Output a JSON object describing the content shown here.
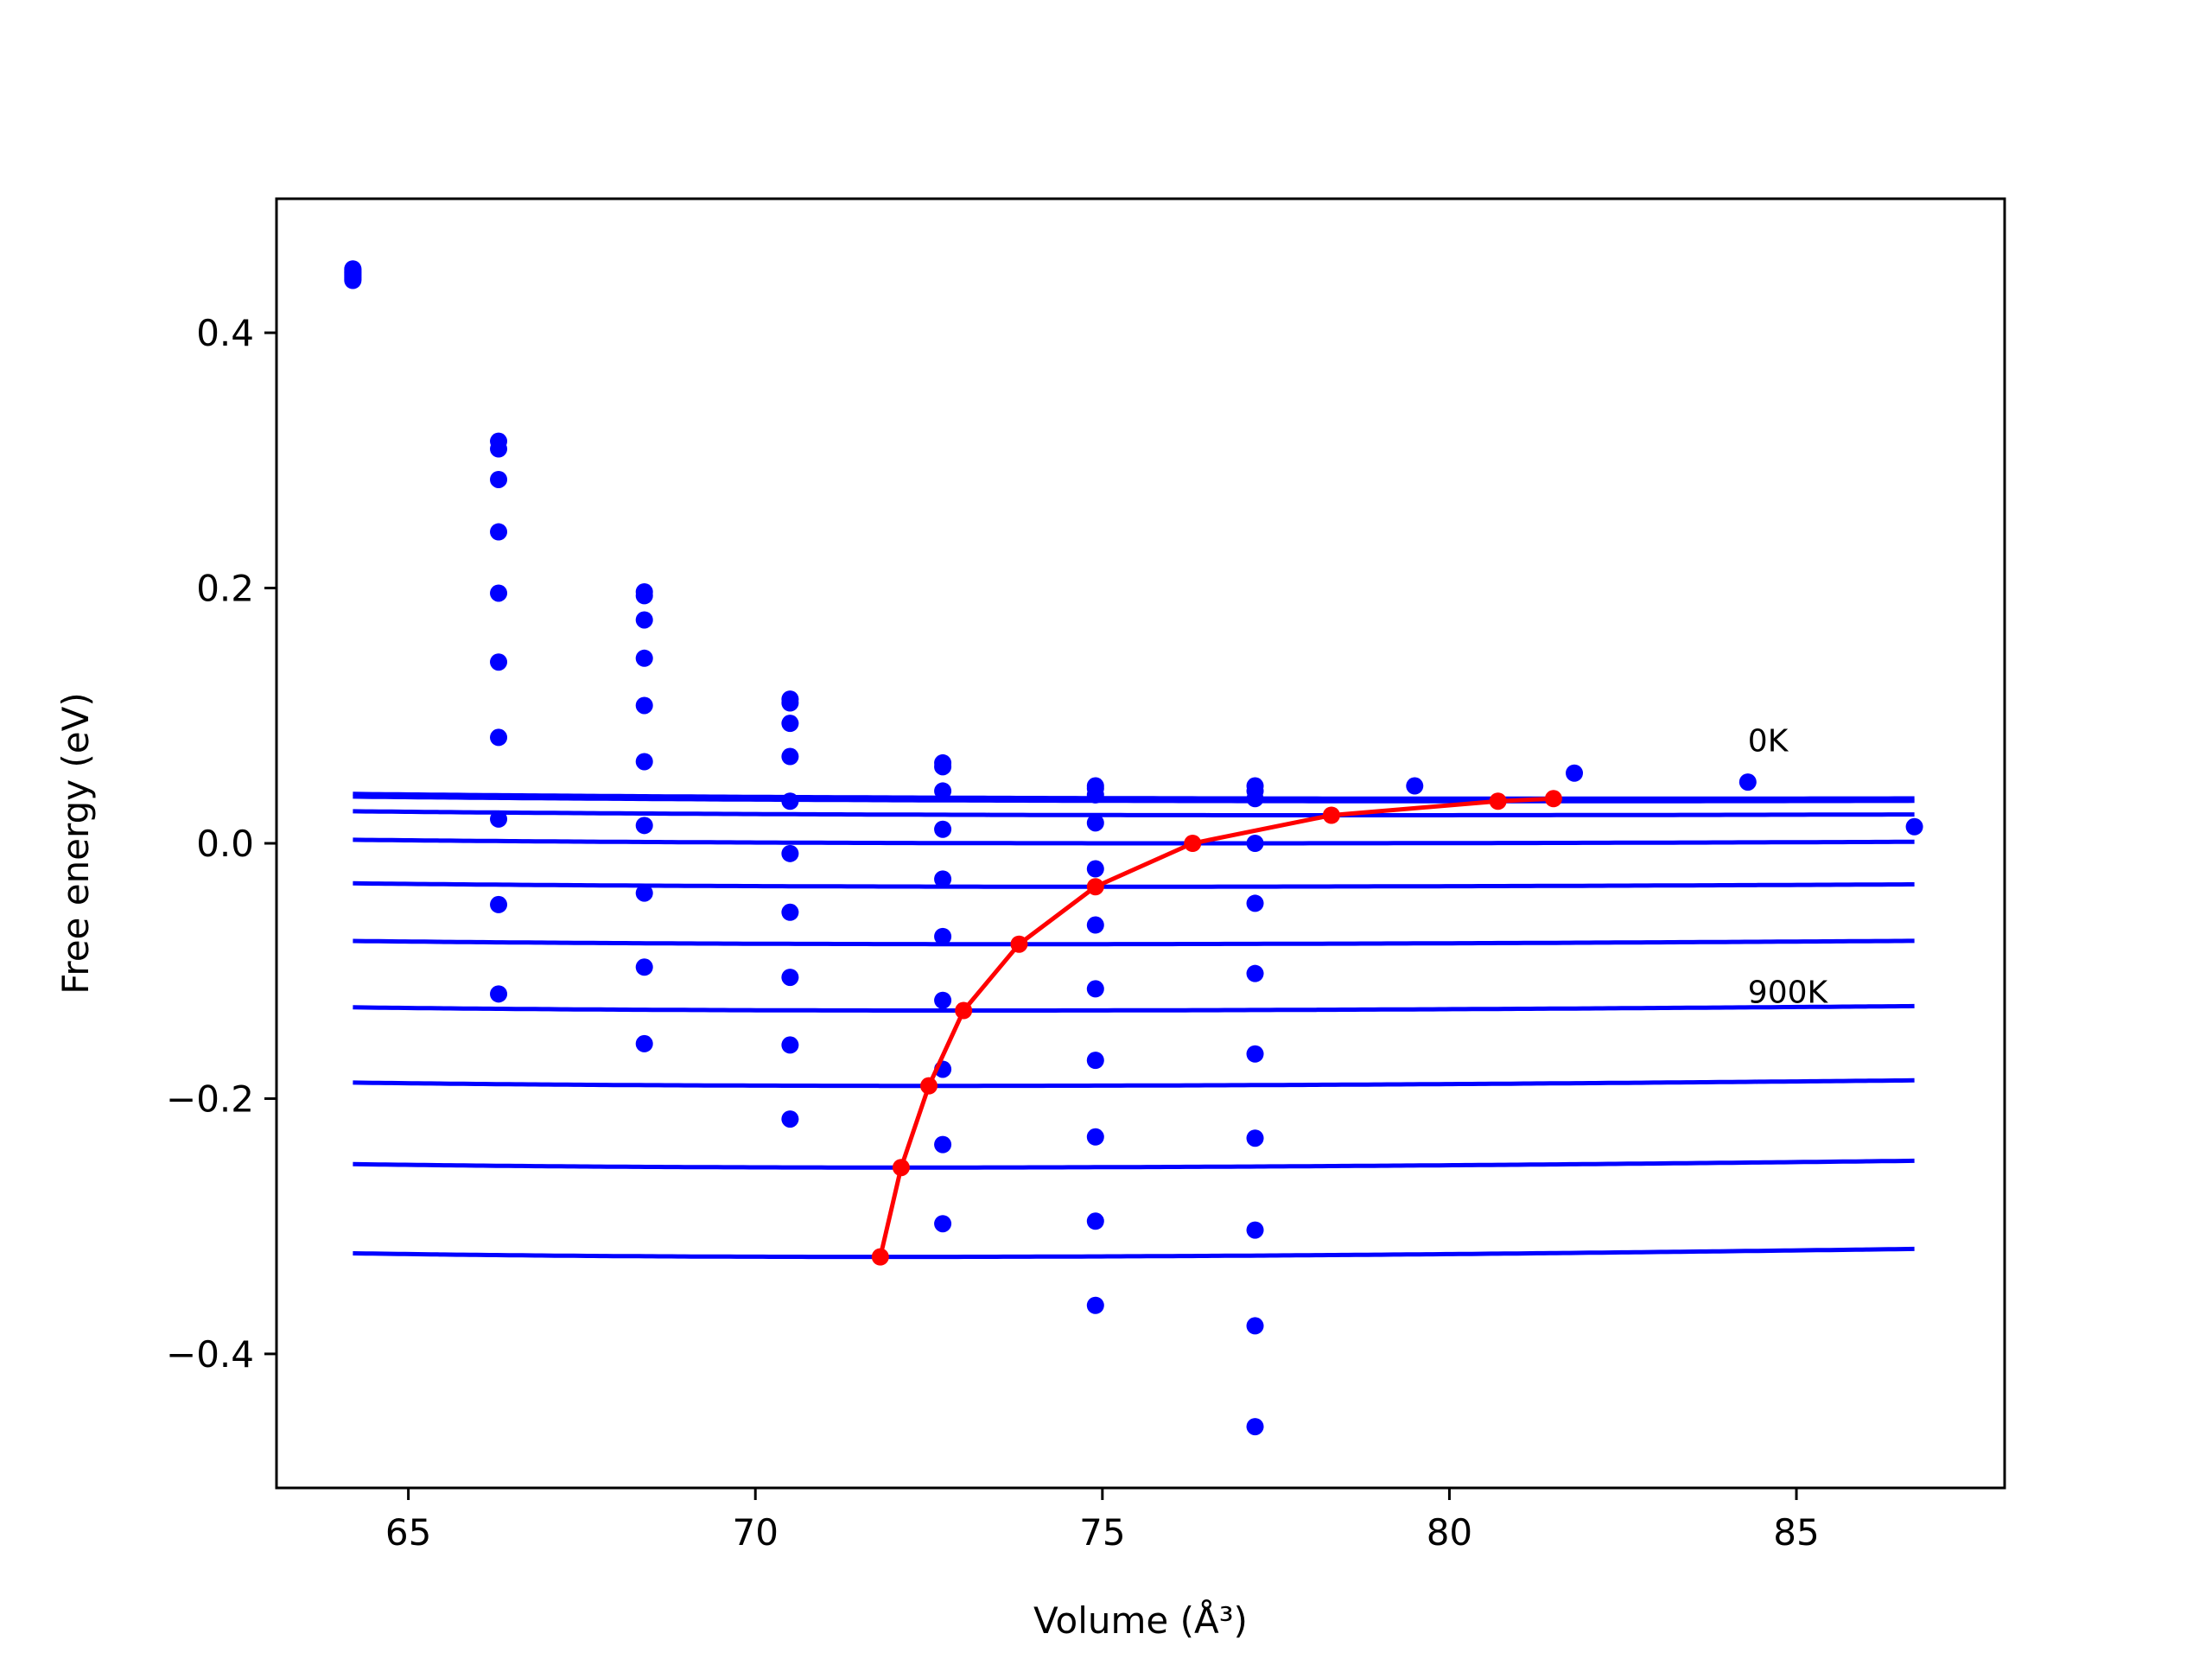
{
  "chart_data": {
    "type": "line",
    "xlabel": "Volume (Å³)",
    "ylabel": "Free energy (eV)",
    "xlim": [
      63.1,
      88.0
    ],
    "ylim": [
      -0.505,
      0.505
    ],
    "xticks": [
      65,
      70,
      75,
      80,
      85
    ],
    "yticks": [
      -0.4,
      -0.2,
      0.0,
      0.2,
      0.4
    ],
    "ytick_labels": [
      "−0.4",
      "−0.2",
      "0.0",
      "0.2",
      "0.4"
    ],
    "grid": false,
    "annotations": [
      {
        "text": "0K",
        "x": 84.3,
        "y": 0.072
      },
      {
        "text": "900K",
        "x": 84.3,
        "y": -0.125
      }
    ],
    "colors": {
      "curves": "#0000ff",
      "points": "#0000ff",
      "minima": "#ff0000"
    },
    "series": [
      {
        "curve": {
          "v0": 81.5,
          "e0": 0.035,
          "b": 0.0013,
          "bp": 4.5
        },
        "points": [
          [
            64.2,
            0.45
          ],
          [
            66.3,
            0.315
          ],
          [
            68.4,
            0.197
          ],
          [
            70.5,
            0.113
          ],
          [
            72.7,
            0.063
          ],
          [
            74.9,
            0.045
          ],
          [
            77.2,
            0.045
          ],
          [
            79.5,
            0.045
          ],
          [
            81.8,
            0.055
          ],
          [
            84.3,
            0.048
          ],
          [
            86.7,
            0.013
          ]
        ]
      },
      {
        "curve": {
          "v0": 80.7,
          "e0": 0.033,
          "b": 0.0014,
          "bp": 4.5
        },
        "points": [
          [
            64.2,
            0.449
          ],
          [
            66.3,
            0.309
          ],
          [
            68.4,
            0.194
          ],
          [
            70.5,
            0.11
          ],
          [
            72.7,
            0.06
          ],
          [
            74.9,
            0.043
          ],
          [
            77.2,
            0.041
          ]
        ]
      },
      {
        "curve": {
          "v0": 78.3,
          "e0": 0.022,
          "b": 0.0017,
          "bp": 4.5
        },
        "points": [
          [
            64.2,
            0.448
          ],
          [
            66.3,
            0.285
          ],
          [
            68.4,
            0.175
          ],
          [
            70.5,
            0.094
          ],
          [
            72.7,
            0.041
          ],
          [
            74.9,
            0.038
          ],
          [
            77.2,
            0.035
          ]
        ]
      },
      {
        "curve": {
          "v0": 76.3,
          "e0": 0.0,
          "b": 0.0021,
          "bp": 4.5
        },
        "points": [
          [
            64.2,
            0.447
          ],
          [
            66.3,
            0.244
          ],
          [
            68.4,
            0.145
          ],
          [
            70.5,
            0.068
          ],
          [
            72.7,
            0.011
          ],
          [
            74.9,
            0.016
          ],
          [
            77.2,
            0.0
          ]
        ]
      },
      {
        "curve": {
          "v0": 74.9,
          "e0": -0.034,
          "b": 0.0026,
          "bp": 4.5
        },
        "points": [
          [
            64.2,
            0.446
          ],
          [
            66.3,
            0.196
          ],
          [
            68.4,
            0.108
          ],
          [
            70.5,
            0.033
          ],
          [
            72.7,
            -0.028
          ],
          [
            74.9,
            -0.02
          ],
          [
            77.2,
            -0.047
          ]
        ]
      },
      {
        "curve": {
          "v0": 73.8,
          "e0": -0.079,
          "b": 0.0031,
          "bp": 4.5
        },
        "points": [
          [
            64.2,
            0.445
          ],
          [
            66.3,
            0.142
          ],
          [
            68.4,
            0.064
          ],
          [
            70.5,
            -0.008
          ],
          [
            72.7,
            -0.073
          ],
          [
            74.9,
            -0.064
          ],
          [
            77.2,
            -0.102
          ]
        ]
      },
      {
        "curve": {
          "v0": 73.0,
          "e0": -0.131,
          "b": 0.0037,
          "bp": 4.5
        },
        "points": [
          [
            64.2,
            0.444
          ],
          [
            66.3,
            0.083
          ],
          [
            68.4,
            0.014
          ],
          [
            70.5,
            -0.054
          ],
          [
            72.7,
            -0.123
          ],
          [
            74.9,
            -0.114
          ],
          [
            77.2,
            -0.165
          ]
        ]
      },
      {
        "curve": {
          "v0": 72.5,
          "e0": -0.19,
          "b": 0.0043,
          "bp": 4.5
        },
        "points": [
          [
            64.2,
            0.443
          ],
          [
            66.3,
            0.019
          ],
          [
            68.4,
            -0.039
          ],
          [
            70.5,
            -0.105
          ],
          [
            72.7,
            -0.177
          ],
          [
            74.9,
            -0.17
          ],
          [
            77.2,
            -0.231
          ]
        ]
      },
      {
        "curve": {
          "v0": 72.1,
          "e0": -0.254,
          "b": 0.005,
          "bp": 4.5
        },
        "points": [
          [
            64.2,
            0.442
          ],
          [
            66.3,
            -0.048
          ],
          [
            68.4,
            -0.097
          ],
          [
            70.5,
            -0.158
          ],
          [
            72.7,
            -0.236
          ],
          [
            74.9,
            -0.23
          ],
          [
            77.2,
            -0.303
          ]
        ]
      },
      {
        "curve": {
          "v0": 71.8,
          "e0": -0.324,
          "b": 0.0057,
          "bp": 4.5
        },
        "points": [
          [
            64.2,
            0.441
          ],
          [
            66.3,
            -0.118
          ],
          [
            68.4,
            -0.157
          ],
          [
            70.5,
            -0.216
          ],
          [
            72.7,
            -0.298
          ],
          [
            74.9,
            -0.362
          ],
          [
            77.2,
            -0.378
          ]
        ]
      }
    ],
    "extra_points": [
      [
        77.2,
        -0.457
      ],
      [
        74.9,
        -0.296
      ]
    ],
    "curve_range": [
      64.2,
      86.7
    ],
    "minima": {
      "x": [
        71.8,
        72.1,
        72.5,
        73.0,
        73.8,
        74.9,
        76.3,
        78.3,
        80.7,
        81.5
      ],
      "y": [
        -0.324,
        -0.254,
        -0.19,
        -0.131,
        -0.079,
        -0.034,
        0.0,
        0.022,
        0.033,
        0.035
      ]
    }
  }
}
